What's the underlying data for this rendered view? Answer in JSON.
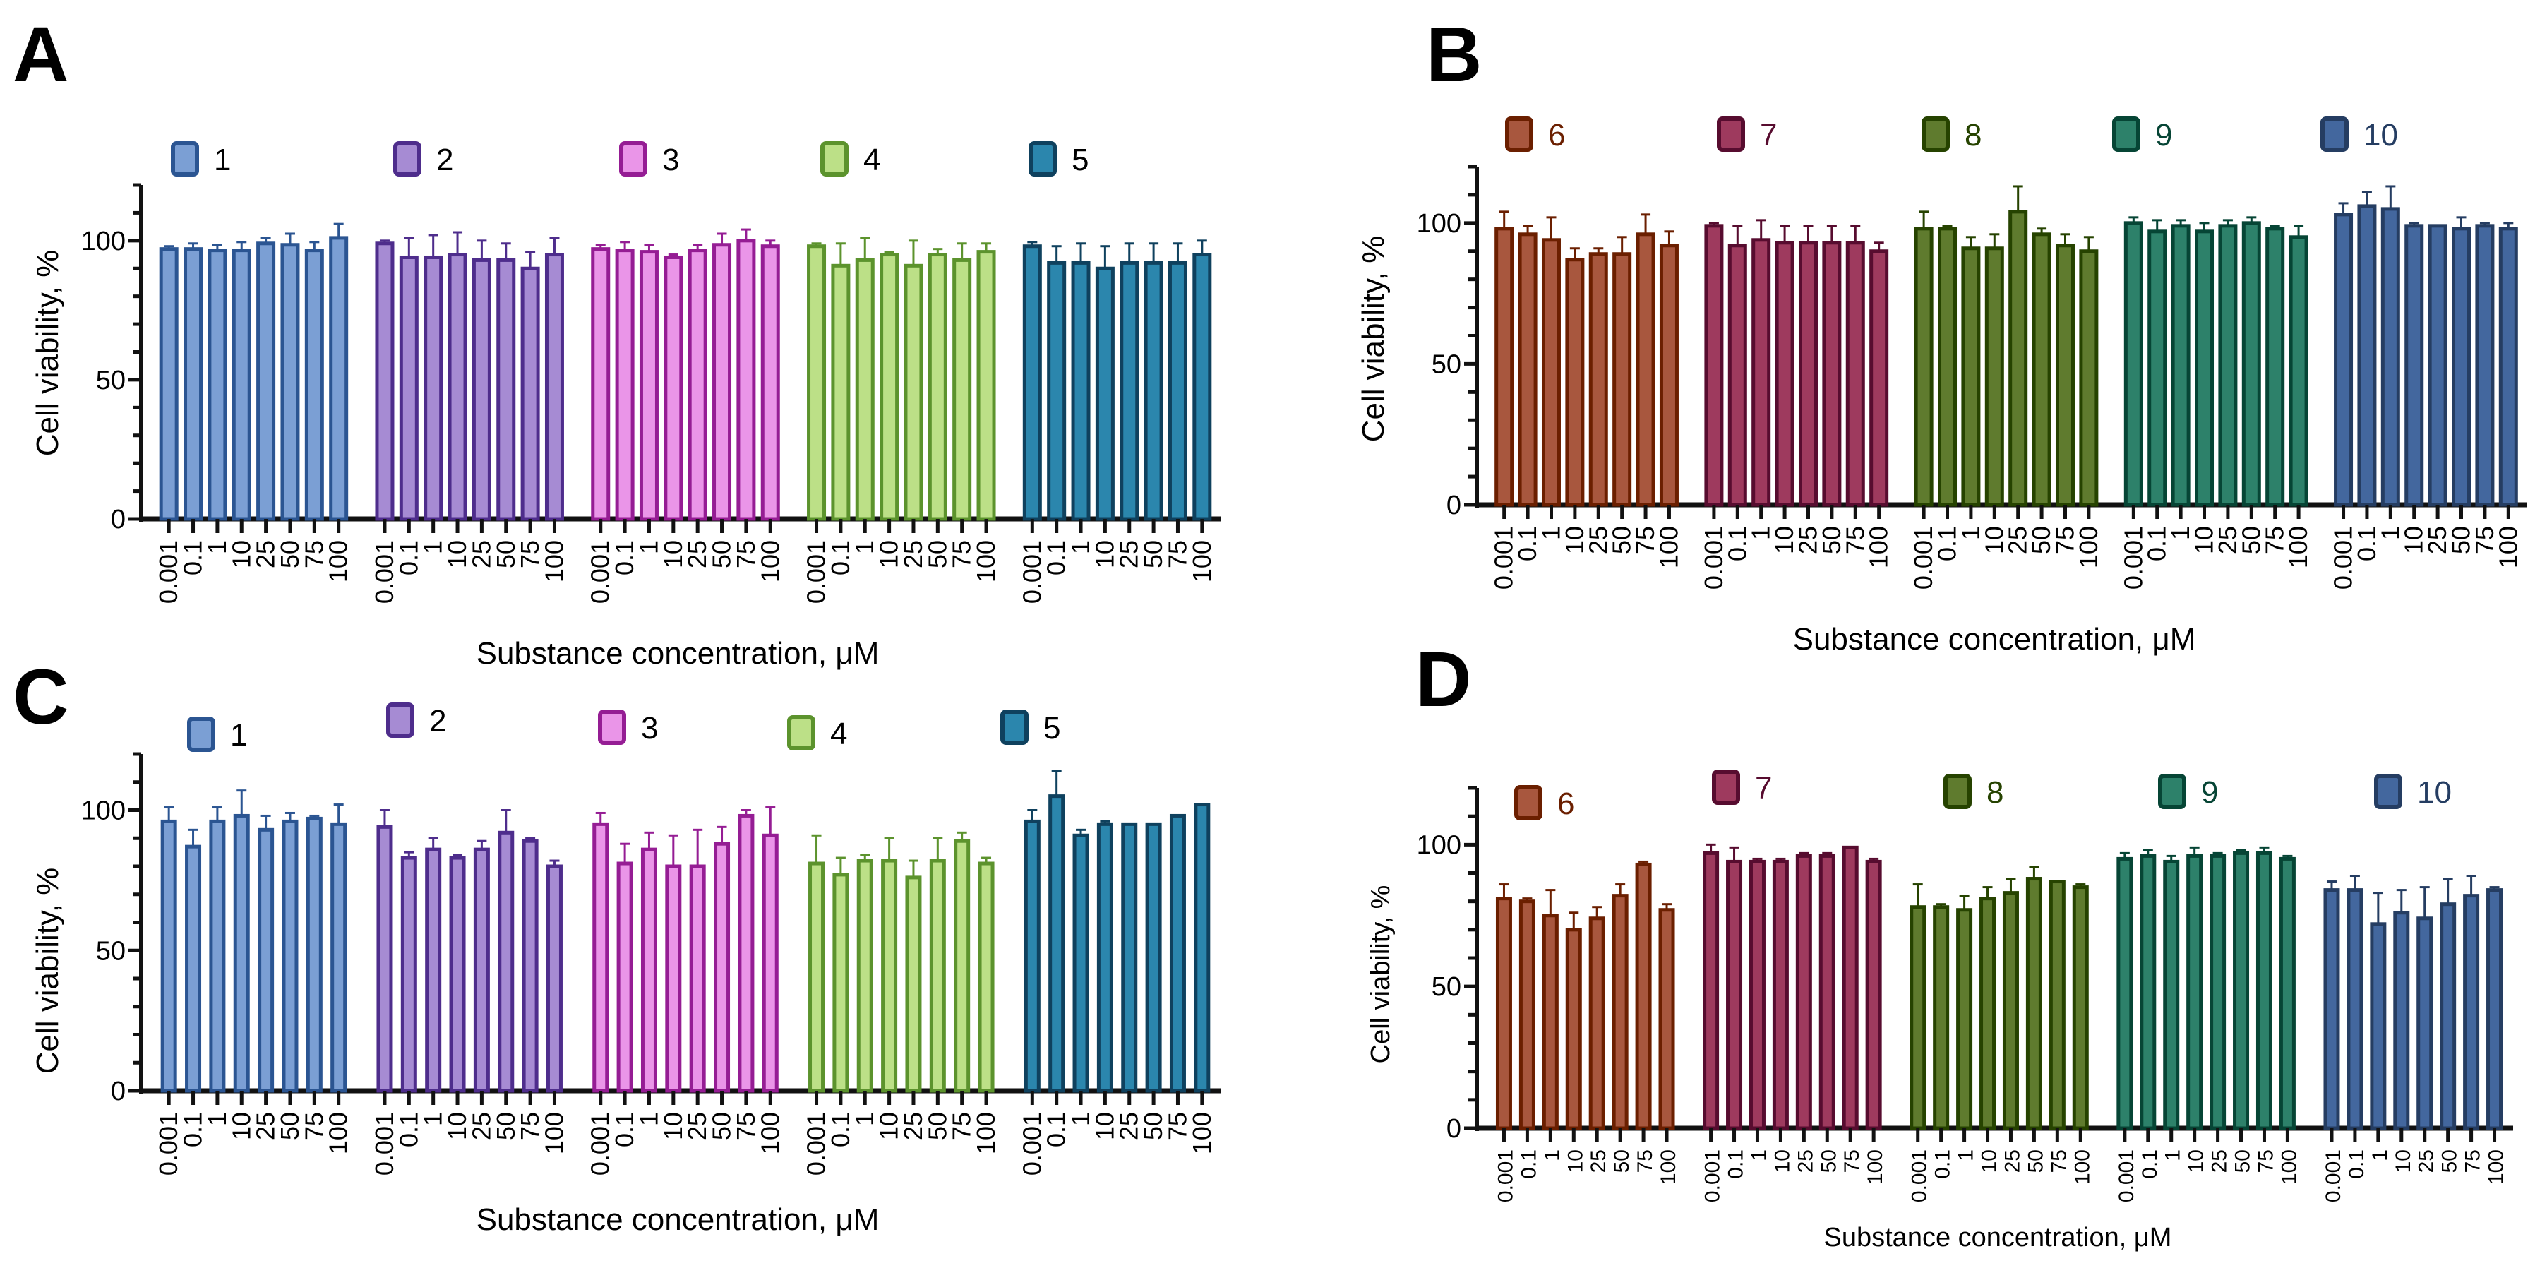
{
  "chart_data": [
    {
      "panel": "A",
      "type": "bar",
      "title": "",
      "xlabel": "Substance concentration, μM",
      "ylabel": "Cell viability, %",
      "ylim": [
        0,
        120
      ],
      "yticks_labeled": [
        0,
        50,
        100
      ],
      "yticks_minor_step": 10,
      "grid": false,
      "legend": "top",
      "categories": [
        "0.001",
        "0.1",
        "1",
        "10",
        "25",
        "50",
        "75",
        "100"
      ],
      "series": [
        {
          "name": "1",
          "fill": "#7b9fd4",
          "stroke": "#2b5592",
          "label_color": "#000000",
          "values": [
            97,
            97,
            96.5,
            96.5,
            99,
            98.5,
            96.5,
            101
          ],
          "errors": [
            1,
            2,
            2,
            3,
            2,
            4,
            3,
            5
          ]
        },
        {
          "name": "2",
          "fill": "#a68bd3",
          "stroke": "#4e2d8c",
          "label_color": "#000000",
          "values": [
            99,
            94,
            94,
            95,
            93,
            93,
            90,
            95
          ],
          "errors": [
            1,
            7,
            8,
            8,
            7,
            6,
            6,
            6
          ]
        },
        {
          "name": "3",
          "fill": "#ea95e8",
          "stroke": "#951d94",
          "label_color": "#000000",
          "values": [
            97,
            96.5,
            96,
            94,
            96.5,
            98.5,
            100,
            98
          ],
          "errors": [
            1.5,
            3,
            2.5,
            1,
            2,
            4,
            4,
            2
          ]
        },
        {
          "name": "4",
          "fill": "#bce087",
          "stroke": "#5c932d",
          "label_color": "#000000",
          "values": [
            98,
            91,
            93,
            95,
            91,
            95,
            93,
            96
          ],
          "errors": [
            1,
            8,
            8,
            1,
            9,
            2,
            6,
            3
          ]
        },
        {
          "name": "5",
          "fill": "#2b86ad",
          "stroke": "#0f415e",
          "label_color": "#000000",
          "values": [
            98,
            92,
            92,
            90,
            92,
            92,
            92,
            95
          ],
          "errors": [
            1.5,
            6,
            7,
            8,
            7,
            7,
            7,
            5
          ]
        }
      ]
    },
    {
      "panel": "B",
      "type": "bar",
      "title": "",
      "xlabel": "Substance concentration, μM",
      "ylabel": "Cell viability, %",
      "ylim": [
        0,
        120
      ],
      "yticks_labeled": [
        0,
        50,
        100
      ],
      "yticks_minor_step": 10,
      "grid": false,
      "legend": "top",
      "categories": [
        "0.001",
        "0.1",
        "1",
        "10",
        "25",
        "50",
        "75",
        "100"
      ],
      "series": [
        {
          "name": "6",
          "fill": "#a8573e",
          "stroke": "#6b1f00",
          "label_color": "#6b1f00",
          "values": [
            98,
            96,
            94,
            87,
            89,
            89,
            96,
            92
          ],
          "errors": [
            6,
            3,
            8,
            4,
            2,
            6,
            7,
            5
          ]
        },
        {
          "name": "7",
          "fill": "#9e3a5e",
          "stroke": "#570c2f",
          "label_color": "#570c2f",
          "values": [
            99,
            92,
            94,
            93,
            93,
            93,
            93,
            90
          ],
          "errors": [
            1,
            7,
            7,
            6,
            6,
            6,
            6,
            3
          ]
        },
        {
          "name": "8",
          "fill": "#5f7b2e",
          "stroke": "#264300",
          "label_color": "#264300",
          "values": [
            98,
            98,
            91,
            91,
            104,
            96,
            92,
            90
          ],
          "errors": [
            6,
            1,
            4,
            5,
            9,
            2,
            4,
            5
          ]
        },
        {
          "name": "9",
          "fill": "#2d816a",
          "stroke": "#064535",
          "label_color": "#064535",
          "values": [
            100,
            97,
            99,
            97,
            99,
            100,
            98,
            95
          ],
          "errors": [
            2,
            4,
            2,
            3,
            2,
            2,
            1,
            4
          ]
        },
        {
          "name": "10",
          "fill": "#43679e",
          "stroke": "#253d62",
          "label_color": "#253d62",
          "values": [
            103,
            106,
            105,
            99,
            99,
            98,
            99,
            98
          ],
          "errors": [
            4,
            5,
            8,
            1,
            0,
            4,
            1,
            2
          ]
        }
      ]
    },
    {
      "panel": "C",
      "type": "bar",
      "title": "",
      "xlabel": "Substance concentration, μM",
      "ylabel": "Cell viability, %",
      "ylim": [
        0,
        120
      ],
      "yticks_labeled": [
        0,
        50,
        100
      ],
      "yticks_minor_step": 10,
      "grid": false,
      "legend": "top",
      "categories": [
        "0.001",
        "0.1",
        "1",
        "10",
        "25",
        "50",
        "75",
        "100"
      ],
      "series": [
        {
          "name": "1",
          "fill": "#7b9fd4",
          "stroke": "#2b5592",
          "label_color": "#000000",
          "values": [
            96,
            87,
            96,
            98,
            93,
            96,
            97,
            95
          ],
          "errors": [
            5,
            6,
            5,
            9,
            5,
            3,
            1,
            7
          ]
        },
        {
          "name": "2",
          "fill": "#a68bd3",
          "stroke": "#4e2d8c",
          "label_color": "#000000",
          "values": [
            94,
            83,
            86,
            83,
            86,
            92,
            89,
            80
          ],
          "errors": [
            6,
            2,
            4,
            1,
            3,
            8,
            1,
            2
          ]
        },
        {
          "name": "3",
          "fill": "#ea95e8",
          "stroke": "#951d94",
          "label_color": "#000000",
          "values": [
            95,
            81,
            86,
            80,
            80,
            88,
            98,
            91
          ],
          "errors": [
            4,
            7,
            6,
            11,
            13,
            6,
            2,
            10
          ]
        },
        {
          "name": "4",
          "fill": "#bce087",
          "stroke": "#5c932d",
          "label_color": "#000000",
          "values": [
            81,
            77,
            82,
            82,
            76,
            82,
            89,
            81
          ],
          "errors": [
            10,
            6,
            2,
            8,
            6,
            8,
            3,
            2
          ]
        },
        {
          "name": "5",
          "fill": "#2b86ad",
          "stroke": "#0f415e",
          "label_color": "#000000",
          "values": [
            96,
            105,
            91,
            95,
            95,
            95,
            98,
            102
          ],
          "errors": [
            4,
            9,
            2,
            1,
            0,
            0,
            0,
            0
          ]
        }
      ]
    },
    {
      "panel": "D",
      "type": "bar",
      "title": "",
      "xlabel": "Substance concentration, μM",
      "ylabel": "Cell viability, %",
      "ylim": [
        0,
        120
      ],
      "yticks_labeled": [
        0,
        50,
        100
      ],
      "yticks_minor_step": 10,
      "grid": false,
      "legend": "top",
      "categories": [
        "0.001",
        "0.1",
        "1",
        "10",
        "25",
        "50",
        "75",
        "100"
      ],
      "series": [
        {
          "name": "6",
          "fill": "#a8573e",
          "stroke": "#6b1f00",
          "label_color": "#6b1f00",
          "values": [
            81,
            80,
            75,
            70,
            74,
            82,
            93,
            77
          ],
          "errors": [
            5,
            1,
            9,
            6,
            4,
            4,
            1,
            2
          ]
        },
        {
          "name": "7",
          "fill": "#9e3a5e",
          "stroke": "#570c2f",
          "label_color": "#570c2f",
          "values": [
            97,
            94,
            94,
            94,
            96,
            96,
            99,
            94
          ],
          "errors": [
            3,
            5,
            1,
            1,
            1,
            1,
            0,
            1
          ]
        },
        {
          "name": "8",
          "fill": "#5f7b2e",
          "stroke": "#264300",
          "label_color": "#264300",
          "values": [
            78,
            78,
            77,
            81,
            83,
            88,
            87,
            85
          ],
          "errors": [
            8,
            1,
            5,
            4,
            5,
            4,
            0,
            1
          ]
        },
        {
          "name": "9",
          "fill": "#2d816a",
          "stroke": "#064535",
          "label_color": "#064535",
          "values": [
            95,
            96,
            94,
            96,
            96,
            97,
            97,
            95
          ],
          "errors": [
            2,
            2,
            2,
            3,
            1,
            1,
            2,
            1
          ]
        },
        {
          "name": "10",
          "fill": "#43679e",
          "stroke": "#253d62",
          "label_color": "#253d62",
          "values": [
            84,
            84,
            72,
            76,
            74,
            79,
            82,
            84
          ],
          "errors": [
            3,
            5,
            11,
            8,
            11,
            9,
            7,
            1
          ]
        }
      ]
    }
  ]
}
